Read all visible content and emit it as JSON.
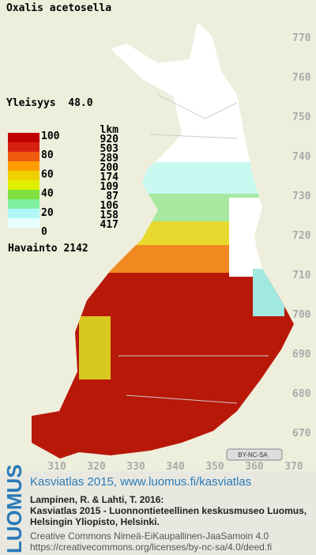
{
  "header": {
    "title": "Oxalis acetosella",
    "frequency": "Yleisyys  48.0"
  },
  "legend": {
    "count_header": "lkm",
    "scale_labels": [
      "100",
      "80",
      "60",
      "40",
      "20",
      "0"
    ],
    "colors": [
      "#c00000",
      "#d82010",
      "#f05a10",
      "#ff9c00",
      "#f0d000",
      "#e0f000",
      "#80e040",
      "#80f0a0",
      "#b0f8f8",
      "#e8ffff"
    ],
    "counts": [
      "920",
      "503",
      "289",
      "200",
      "174",
      "109",
      "87",
      "106",
      "158",
      "417"
    ],
    "observations": "Havainto 2142"
  },
  "map": {
    "y_labels": [
      "770",
      "760",
      "750",
      "740",
      "730",
      "720",
      "710",
      "700",
      "690",
      "680",
      "670"
    ],
    "x_labels": [
      "310",
      "320",
      "330",
      "340",
      "350",
      "360",
      "370"
    ],
    "license_badge": "BY-NC-SA"
  },
  "footer": {
    "logo": "LUOMUS",
    "atlas": "Kasviatlas 2015, www.luomus.fi/kasviatlas",
    "citation": [
      "Lampinen, R. & Lahti, T. 2016:",
      "Kasviatlas 2015 - Luonnontieteellinen keskusmuseo Luomus,",
      "Helsingin Yliopisto, Helsinki."
    ],
    "license": [
      "Creative Commons Nimeä-EiKaupallinen-JaaSamoin 4.0",
      "https://creativecommons.org/licenses/by-nc-sa/4.0/deed.fi"
    ]
  }
}
